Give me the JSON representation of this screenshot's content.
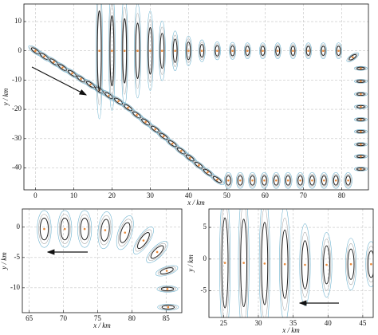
{
  "chart_data": [
    {
      "type": "scatter",
      "xlabel": "x / km",
      "ylabel": "y / km",
      "xlim": [
        -3,
        87
      ],
      "ylim": [
        -47.5,
        16
      ],
      "xticks": [
        0,
        10,
        20,
        30,
        40,
        50,
        60,
        70,
        80
      ],
      "yticks": [
        10,
        0,
        -10,
        -20,
        -30,
        -40
      ],
      "grid": true,
      "color": "#222222",
      "outer_color": "#6fb3cf",
      "mid_color": "#a8a8a8",
      "center_color": "#e8893a",
      "x": [
        0,
        2.3,
        4.8,
        7.1,
        9.6,
        11.9,
        14.4,
        16.7,
        19.2,
        21.7,
        24.2,
        26.5,
        28.8,
        31.3,
        33.5,
        35.8,
        38.1,
        40.4,
        42.7,
        45.0,
        47.5,
        50.4,
        53.5,
        56.7,
        59.8,
        62.9,
        66.0,
        69.2,
        72.3,
        75.4,
        78.5,
        81.7,
        85.0,
        85.0,
        85.0,
        85.0,
        85.0,
        85.0,
        85.0,
        85.0,
        85.0,
        82.9,
        79.2,
        75.2,
        71.3,
        67.3,
        63.3,
        59.4,
        55.4,
        51.5,
        47.5,
        43.5,
        40.0,
        36.5,
        33.1,
        30.0,
        26.7,
        23.3,
        20.0,
        16.7
      ],
      "values": [
        0,
        -1.9,
        -3.8,
        -5.7,
        -7.7,
        -9.6,
        -11.5,
        -13.4,
        -15.3,
        -17.2,
        -19.4,
        -21.9,
        -24.3,
        -26.8,
        -29.2,
        -31.7,
        -34.2,
        -36.6,
        -39.1,
        -41.5,
        -44.0,
        -44.3,
        -44.3,
        -44.3,
        -44.3,
        -44.3,
        -44.3,
        -44.3,
        -44.3,
        -44.3,
        -44.3,
        -44.3,
        -40.4,
        -36.1,
        -32.0,
        -27.6,
        -23.5,
        -19.1,
        -14.8,
        -10.4,
        -6.0,
        -2.2,
        0,
        0,
        0,
        0,
        0,
        0,
        0,
        0,
        0,
        0,
        0,
        0,
        0,
        0,
        0,
        0,
        0,
        0
      ],
      "ellipse_major": [
        1.4,
        1.4,
        1.4,
        1.4,
        1.4,
        1.4,
        1.4,
        1.4,
        1.4,
        1.4,
        1.4,
        1.4,
        1.4,
        1.4,
        1.4,
        1.4,
        1.4,
        1.4,
        1.4,
        1.4,
        1.4,
        1.6,
        1.6,
        1.6,
        1.6,
        1.6,
        1.6,
        1.6,
        1.6,
        1.6,
        1.6,
        1.6,
        1.0,
        1.0,
        1.0,
        1.0,
        1.0,
        1.0,
        1.0,
        1.0,
        1.0,
        1.2,
        1.6,
        1.6,
        1.6,
        1.6,
        1.6,
        1.6,
        1.6,
        1.7,
        1.8,
        2.2,
        3.0,
        4.0,
        6.0,
        8.0,
        9.5,
        11,
        12,
        13.7
      ],
      "ellipse_minor": [
        0.5,
        0.5,
        0.5,
        0.5,
        0.5,
        0.5,
        0.5,
        0.5,
        0.5,
        0.5,
        0.5,
        0.5,
        0.5,
        0.5,
        0.5,
        0.5,
        0.5,
        0.5,
        0.5,
        0.5,
        0.5,
        0.6,
        0.6,
        0.6,
        0.6,
        0.6,
        0.6,
        0.6,
        0.6,
        0.6,
        0.6,
        0.6,
        0.4,
        0.4,
        0.4,
        0.4,
        0.4,
        0.4,
        0.4,
        0.4,
        0.4,
        0.5,
        0.5,
        0.5,
        0.5,
        0.5,
        0.5,
        0.5,
        0.5,
        0.5,
        0.5,
        0.5,
        0.5,
        0.5,
        0.5,
        0.5,
        0.5,
        0.5,
        0.5,
        0.5
      ],
      "ellipse_angle": [
        -45,
        -45,
        -45,
        -45,
        -45,
        -45,
        -45,
        -45,
        -45,
        -45,
        -45,
        -45,
        -45,
        -45,
        -45,
        -45,
        -45,
        -45,
        -45,
        -45,
        -45,
        90,
        90,
        90,
        90,
        90,
        90,
        90,
        90,
        90,
        90,
        90,
        0,
        0,
        0,
        0,
        0,
        0,
        0,
        0,
        0,
        45,
        90,
        90,
        90,
        90,
        90,
        90,
        90,
        90,
        90,
        90,
        90,
        90,
        90,
        90,
        90,
        90,
        90,
        90
      ]
    },
    {
      "type": "scatter",
      "xlabel": "x / km",
      "ylabel": "y / km",
      "xlim": [
        64,
        87.3
      ],
      "ylim": [
        -14.1,
        3
      ],
      "xticks": [
        65,
        70,
        75,
        80,
        85
      ],
      "yticks": [
        0,
        -5,
        -10
      ],
      "grid": true,
      "color": "#222222",
      "outer_color": "#6fb3cf",
      "mid_color": "#a8a8a8",
      "center_color": "#e8893a",
      "x": [
        67.2,
        70.2,
        73.1,
        76.1,
        79.0,
        81.7,
        83.7,
        85.1,
        85.2,
        85.3
      ],
      "values": [
        -0.3,
        -0.3,
        -0.3,
        -0.5,
        -0.9,
        -2.2,
        -4.1,
        -7.2,
        -10.2,
        -13.2
      ],
      "ellipse_major": [
        1.8,
        1.8,
        1.8,
        1.8,
        1.7,
        1.5,
        1.3,
        1.0,
        0.9,
        0.9
      ],
      "ellipse_minor": [
        0.6,
        0.6,
        0.6,
        0.6,
        0.6,
        0.5,
        0.5,
        0.4,
        0.3,
        0.3
      ],
      "ellipse_angle": [
        90,
        90,
        90,
        85,
        75,
        60,
        50,
        20,
        0,
        0
      ]
    },
    {
      "type": "scatter",
      "xlabel": "x / km",
      "ylabel": "y / km",
      "xlim": [
        22.9,
        46.5
      ],
      "ylim": [
        -9.2,
        7.9
      ],
      "xticks": [
        25,
        30,
        35,
        40,
        45
      ],
      "yticks": [
        5,
        0,
        -5
      ],
      "grid": true,
      "color": "#222222",
      "outer_color": "#6fb3cf",
      "mid_color": "#a8a8a8",
      "center_color": "#e8893a",
      "x": [
        25.2,
        27.9,
        30.9,
        33.8,
        36.7,
        39.8,
        43.3,
        46.2
      ],
      "values": [
        -0.6,
        -0.6,
        -0.7,
        -0.8,
        -0.9,
        -0.9,
        -0.8,
        -0.8
      ],
      "ellipse_major": [
        7.1,
        6.9,
        6.5,
        5.4,
        3.8,
        3.0,
        2.4,
        2.1
      ],
      "ellipse_minor": [
        0.45,
        0.45,
        0.45,
        0.45,
        0.45,
        0.45,
        0.45,
        0.45
      ],
      "ellipse_angle": [
        90,
        90,
        90,
        90,
        90,
        90,
        90,
        90
      ]
    }
  ]
}
